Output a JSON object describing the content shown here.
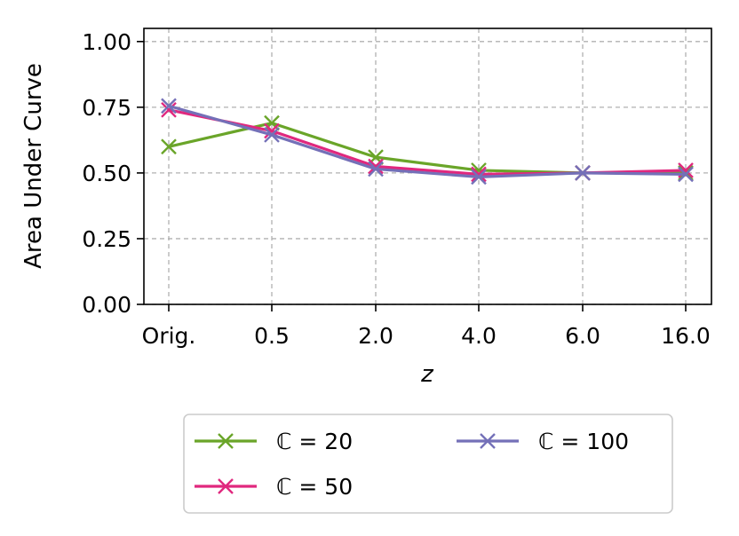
{
  "chart_data": {
    "type": "line",
    "xlabel": "z",
    "ylabel": "Area Under Curve",
    "categories": [
      "Orig.",
      "0.5",
      "2.0",
      "4.0",
      "6.0",
      "16.0"
    ],
    "ylim": [
      0,
      1.05
    ],
    "yticks": [
      "0.00",
      "0.25",
      "0.50",
      "0.75",
      "1.00"
    ],
    "grid": true,
    "legend_position": "bottom",
    "series": [
      {
        "name": "ℂ = 20",
        "color": "#6aa529",
        "marker": "x",
        "values": [
          0.6,
          0.69,
          0.56,
          0.51,
          0.5,
          0.5
        ]
      },
      {
        "name": "ℂ = 50",
        "color": "#e0287e",
        "marker": "x",
        "values": [
          0.74,
          0.66,
          0.525,
          0.495,
          0.5,
          0.51
        ]
      },
      {
        "name": "ℂ = 100",
        "color": "#7470b8",
        "marker": "x",
        "values": [
          0.755,
          0.645,
          0.515,
          0.485,
          0.5,
          0.495
        ]
      }
    ]
  }
}
